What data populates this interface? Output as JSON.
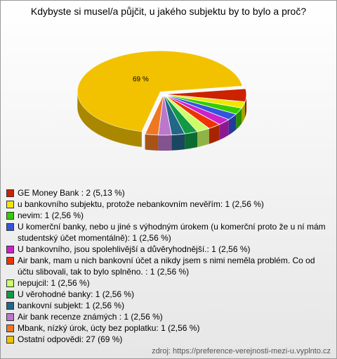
{
  "chart_data": {
    "type": "pie",
    "title": "Kdybyste si musel/a půjčit, u jakého subjektu by to bylo a proč?",
    "categories": [
      "GE Money Bank : 2 (5,13 %)",
      "u bankovního subjektu, protože nebankovním nevěřím: 1 (2,56 %)",
      "nevim: 1 (2,56 %)",
      "U komerční banky, nebo u jiné s výhodným úrokem (u komerční proto že u ní mám studentský účet momentálně): 1 (2,56 %)",
      "U bankovního, jsou spolehlivější a důvěryhodnější.: 1 (2,56 %)",
      "Air bank, mam u nich bankovní účet a nikdy jsem s nimi neměla problém. Co od účtu slibovali, tak to bylo splněno. : 1 (2,56 %)",
      "nepujcil: 1 (2,56 %)",
      "U věrohodné banky: 1 (2,56 %)",
      "bankovní subjekt: 1 (2,56 %)",
      "Air bank recenze známých : 1 (2,56 %)",
      "Mbank, nízký úrok, úcty bez poplatku: 1 (2,56 %)",
      "Ostatní odpovědi: 27 (69 %)"
    ],
    "values": [
      5.13,
      2.56,
      2.56,
      2.56,
      2.56,
      2.56,
      2.56,
      2.56,
      2.56,
      2.56,
      2.56,
      69
    ],
    "value_labels": [
      null,
      null,
      null,
      null,
      null,
      null,
      null,
      null,
      null,
      null,
      null,
      "69 %"
    ],
    "colors": [
      "#cc2200",
      "#f2e600",
      "#33cc00",
      "#3355dd",
      "#cc22cc",
      "#ee3300",
      "#ccff66",
      "#119944",
      "#226688",
      "#bb77cc",
      "#ee7722",
      "#f2c200"
    ],
    "source": "zdroj: https://preference-verejnosti-mezi-u.vyplnto.cz"
  }
}
